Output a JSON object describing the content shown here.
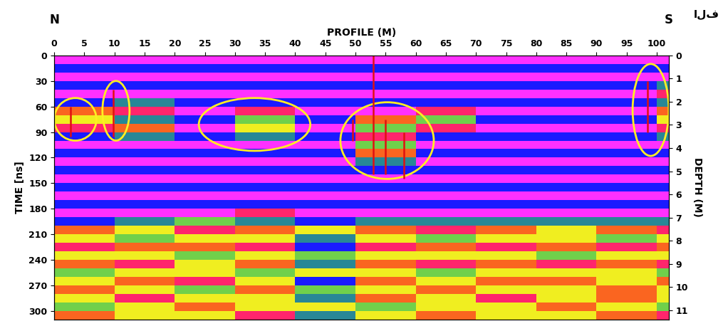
{
  "chart_data": {
    "type": "heatmap",
    "x_label": "PROFILE (M)",
    "y_label": "TIME [ns]",
    "y2_label": "DEPTH (M)",
    "direction_labels": [
      "N",
      "S"
    ],
    "corner_text": "الف",
    "x": [
      0,
      10,
      20,
      30,
      40,
      50,
      60,
      70,
      80,
      90,
      100,
      102
    ],
    "y": [
      0,
      10,
      20,
      30,
      40,
      50,
      60,
      70,
      80,
      90,
      100,
      110,
      120,
      130,
      140,
      150,
      160,
      170,
      180,
      190,
      200,
      210,
      220,
      230,
      240,
      250,
      260,
      270,
      280,
      290,
      300,
      310
    ],
    "cells": [
      [
        3,
        3,
        3,
        3,
        3,
        3,
        3,
        3,
        3,
        3,
        3
      ],
      [
        -3,
        -3,
        -3,
        -3,
        -3,
        -3,
        -3,
        -3,
        -3,
        -3,
        -3
      ],
      [
        3,
        3,
        3,
        3,
        3,
        3,
        3,
        3,
        3,
        3,
        3
      ],
      [
        -3,
        -3,
        -3,
        -3,
        -3,
        -3,
        -3,
        -3,
        -3,
        -3,
        -2
      ],
      [
        3,
        3,
        3,
        3,
        3,
        3,
        3,
        3,
        3,
        3,
        2
      ],
      [
        -3,
        -2,
        -3,
        -3,
        -3,
        -3,
        -3,
        -3,
        -3,
        -3,
        -2
      ],
      [
        1,
        2,
        3,
        2,
        3,
        3,
        2,
        3,
        3,
        3,
        1
      ],
      [
        0,
        -2,
        -3,
        -1,
        -3,
        1,
        -1,
        -3,
        -3,
        -3,
        0
      ],
      [
        2,
        1,
        3,
        0,
        3,
        -1,
        2,
        3,
        3,
        3,
        2
      ],
      [
        -3,
        -2,
        -3,
        -2,
        -3,
        2,
        -3,
        -3,
        -3,
        -3,
        -2
      ],
      [
        3,
        3,
        3,
        3,
        3,
        -1,
        3,
        3,
        3,
        3,
        3
      ],
      [
        -3,
        -3,
        -3,
        -3,
        -3,
        1,
        -3,
        -3,
        -3,
        -3,
        -3
      ],
      [
        3,
        3,
        3,
        3,
        3,
        -2,
        3,
        3,
        3,
        3,
        3
      ],
      [
        -3,
        -3,
        -3,
        -3,
        -3,
        -3,
        -3,
        -3,
        -3,
        -3,
        -3
      ],
      [
        3,
        3,
        3,
        3,
        3,
        3,
        3,
        3,
        3,
        3,
        3
      ],
      [
        -3,
        -3,
        -3,
        -3,
        -3,
        -3,
        -3,
        -3,
        -3,
        -3,
        -3
      ],
      [
        3,
        3,
        3,
        3,
        3,
        3,
        3,
        3,
        3,
        3,
        3
      ],
      [
        -3,
        -3,
        -3,
        -3,
        -3,
        -3,
        -3,
        -3,
        -3,
        -3,
        -3
      ],
      [
        3,
        3,
        3,
        2,
        3,
        3,
        3,
        3,
        3,
        3,
        3
      ],
      [
        -3,
        -2,
        -1,
        -2,
        -3,
        -2,
        -2,
        -2,
        -2,
        -2,
        -2
      ],
      [
        1,
        0,
        2,
        1,
        0,
        1,
        2,
        1,
        0,
        1,
        2
      ],
      [
        0,
        -1,
        0,
        0,
        -2,
        0,
        -1,
        0,
        0,
        -1,
        0
      ],
      [
        2,
        1,
        1,
        2,
        -3,
        2,
        1,
        2,
        1,
        2,
        1
      ],
      [
        0,
        0,
        -1,
        0,
        -1,
        0,
        0,
        0,
        -1,
        0,
        0
      ],
      [
        1,
        2,
        0,
        1,
        -2,
        1,
        2,
        1,
        2,
        1,
        2
      ],
      [
        -1,
        0,
        0,
        -1,
        0,
        0,
        -1,
        0,
        0,
        0,
        -1
      ],
      [
        0,
        1,
        2,
        0,
        -3,
        1,
        0,
        1,
        1,
        0,
        1
      ],
      [
        1,
        0,
        -1,
        1,
        -1,
        0,
        1,
        0,
        0,
        1,
        0
      ],
      [
        0,
        2,
        0,
        0,
        -2,
        1,
        0,
        2,
        0,
        1,
        0
      ],
      [
        -1,
        0,
        1,
        0,
        0,
        -1,
        0,
        0,
        1,
        0,
        -1
      ],
      [
        1,
        0,
        0,
        2,
        -2,
        0,
        1,
        0,
        0,
        1,
        2
      ]
    ],
    "xlim": [
      0,
      102
    ],
    "xticks": [
      0,
      5,
      10,
      15,
      20,
      25,
      30,
      35,
      40,
      45,
      50,
      55,
      60,
      65,
      70,
      75,
      80,
      85,
      90,
      95,
      100
    ],
    "ylim": [
      310,
      0
    ],
    "yticks": [
      0,
      30,
      60,
      90,
      120,
      150,
      180,
      210,
      240,
      270,
      300
    ],
    "y2lim": [
      11.4,
      0
    ],
    "y2ticks": [
      0,
      1,
      2,
      3,
      4,
      5,
      6,
      7,
      8,
      9,
      10,
      11
    ],
    "highlights": [
      {
        "x": [
          0,
          7
        ],
        "y": [
          50,
          100
        ]
      },
      {
        "x": [
          8,
          12.5
        ],
        "y": [
          30,
          100
        ]
      },
      {
        "x": [
          24,
          42.5
        ],
        "y": [
          50,
          112
        ]
      },
      {
        "x": [
          47.5,
          63
        ],
        "y": [
          55,
          145
        ]
      },
      {
        "x": [
          96,
          102
        ],
        "y": [
          10,
          118
        ]
      }
    ],
    "lines": [
      {
        "x": 2.7,
        "y": [
          60,
          95
        ]
      },
      {
        "x": 9.8,
        "y": [
          40,
          95
        ]
      },
      {
        "x": 49.5,
        "y": [
          75,
          100
        ]
      },
      {
        "x": 53,
        "y": [
          0,
          140
        ]
      },
      {
        "x": 55,
        "y": [
          75,
          140
        ]
      },
      {
        "x": 58,
        "y": [
          90,
          145
        ]
      },
      {
        "x": 98.5,
        "y": [
          30,
          90
        ]
      }
    ]
  }
}
